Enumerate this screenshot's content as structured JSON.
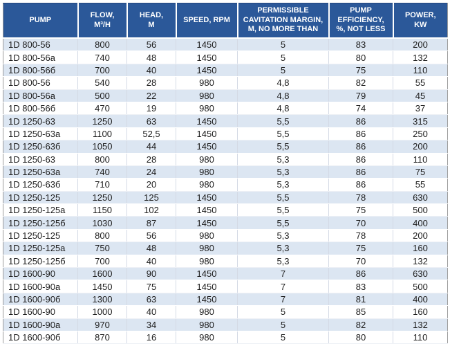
{
  "colors": {
    "header_bg": "#2b5899",
    "header_text": "#ffffff",
    "row_alt_bg": "#dce6f2",
    "row_bg": "#ffffff",
    "cell_text": "#1c1c1c",
    "outer_border": "#9b9b9b"
  },
  "table": {
    "columns": [
      {
        "id": "pump",
        "label": "PUMP"
      },
      {
        "id": "flow",
        "label": "FLOW,\nM³/H"
      },
      {
        "id": "head",
        "label": "HEAD,\nM"
      },
      {
        "id": "speed",
        "label": "SPEED, RPM"
      },
      {
        "id": "cavitation_margin",
        "label": "PERMISSIBLE\nCAVITATION MARGIN,\nM, NO MORE THAN"
      },
      {
        "id": "efficiency",
        "label": "PUMP\nEFFICIENCY,\n%, NOT LESS"
      },
      {
        "id": "power",
        "label": "POWER,\nKW"
      }
    ],
    "rows": [
      [
        "1D 800-56",
        "800",
        "56",
        "1450",
        "5",
        "83",
        "200"
      ],
      [
        "1D 800-56a",
        "740",
        "48",
        "1450",
        "5",
        "80",
        "132"
      ],
      [
        "1D 800-56б",
        "700",
        "40",
        "1450",
        "5",
        "75",
        "110"
      ],
      [
        "1D 800-56",
        "540",
        "28",
        "980",
        "4,8",
        "82",
        "55"
      ],
      [
        "1D 800-56a",
        "500",
        "22",
        "980",
        "4,8",
        "79",
        "45"
      ],
      [
        "1D 800-56б",
        "470",
        "19",
        "980",
        "4,8",
        "74",
        "37"
      ],
      [
        "1D 1250-63",
        "1250",
        "63",
        "1450",
        "5,5",
        "86",
        "315"
      ],
      [
        "1D 1250-63a",
        "1100",
        "52,5",
        "1450",
        "5,5",
        "86",
        "250"
      ],
      [
        "1D 1250-63б",
        "1050",
        "44",
        "1450",
        "5,5",
        "86",
        "200"
      ],
      [
        "1D 1250-63",
        "800",
        "28",
        "980",
        "5,3",
        "86",
        "110"
      ],
      [
        "1D 1250-63a",
        "740",
        "24",
        "980",
        "5,3",
        "86",
        "75"
      ],
      [
        "1D 1250-63б",
        "710",
        "20",
        "980",
        "5,3",
        "86",
        "55"
      ],
      [
        "1D 1250-125",
        "1250",
        "125",
        "1450",
        "5,5",
        "78",
        "630"
      ],
      [
        "1D 1250-125a",
        "1150",
        "102",
        "1450",
        "5,5",
        "75",
        "500"
      ],
      [
        "1D 1250-125б",
        "1030",
        "87",
        "1450",
        "5,5",
        "70",
        "400"
      ],
      [
        "1D 1250-125",
        "800",
        "56",
        "980",
        "5,3",
        "78",
        "200"
      ],
      [
        "1D 1250-125a",
        "750",
        "48",
        "980",
        "5,3",
        "75",
        "160"
      ],
      [
        "1D 1250-125б",
        "700",
        "40",
        "980",
        "5,3",
        "70",
        "132"
      ],
      [
        "1D 1600-90",
        "1600",
        "90",
        "1450",
        "7",
        "86",
        "630"
      ],
      [
        "1D 1600-90a",
        "1450",
        "75",
        "1450",
        "7",
        "83",
        "500"
      ],
      [
        "1D 1600-90б",
        "1300",
        "63",
        "1450",
        "7",
        "81",
        "400"
      ],
      [
        "1D 1600-90",
        "1000",
        "40",
        "980",
        "5",
        "85",
        "160"
      ],
      [
        "1D 1600-90a",
        "970",
        "34",
        "980",
        "5",
        "82",
        "132"
      ],
      [
        "1D 1600-90б",
        "870",
        "16",
        "980",
        "5",
        "80",
        "110"
      ]
    ]
  }
}
